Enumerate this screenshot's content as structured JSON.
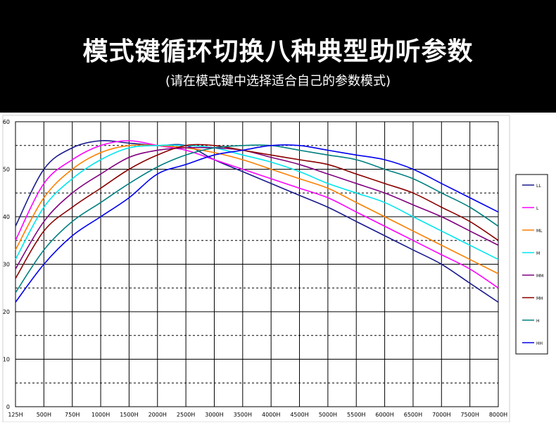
{
  "banner": {
    "title": "模式键循环切换八种典型助听参数",
    "subtitle": "(请在模式键中选择适合自己的参数模式)"
  },
  "chart_data": {
    "type": "line",
    "title": "",
    "xlabel": "",
    "ylabel": "",
    "ylim": [
      0,
      60
    ],
    "yticks": [
      0,
      10,
      20,
      30,
      40,
      50,
      60
    ],
    "grid": true,
    "legend_position": "right",
    "categories": [
      "125H",
      "500H",
      "750H",
      "1000H",
      "1500H",
      "2000H",
      "2500H",
      "3000H",
      "3500H",
      "4000H",
      "4500H",
      "5000H",
      "5500H",
      "6000H",
      "6500H",
      "7000H",
      "7500H",
      "8000H"
    ],
    "series": [
      {
        "name": "LL",
        "color": "#1a1a8c",
        "values": [
          38,
          50,
          54.5,
          56,
          55.5,
          55,
          55,
          52,
          49.5,
          47,
          44.5,
          42,
          39,
          36,
          33,
          30,
          26,
          22
        ]
      },
      {
        "name": "L",
        "color": "#ff00ff",
        "values": [
          35,
          47,
          52,
          55,
          56,
          55,
          54,
          52,
          50,
          48,
          46,
          44,
          41,
          38,
          35,
          32,
          29,
          25
        ]
      },
      {
        "name": "ML",
        "color": "#ff7f00",
        "values": [
          33,
          44,
          50,
          53.5,
          55,
          55,
          54.5,
          53.5,
          52,
          50,
          48,
          46,
          43,
          40,
          37,
          34,
          31,
          28
        ]
      },
      {
        "name": "M",
        "color": "#00e5ee",
        "values": [
          31,
          42,
          48,
          52,
          54.5,
          55,
          55,
          54.5,
          53,
          51.5,
          49.5,
          47,
          45,
          43,
          40,
          37,
          34,
          31
        ]
      },
      {
        "name": "MM",
        "color": "#800080",
        "values": [
          29,
          39,
          45,
          49,
          52.5,
          54,
          54.5,
          54.5,
          54,
          52.5,
          51,
          49,
          47,
          45,
          42.5,
          40,
          37,
          34
        ]
      },
      {
        "name": "MH",
        "color": "#8b0000",
        "values": [
          27,
          37,
          42,
          46,
          50,
          53,
          55,
          55,
          54,
          53,
          52,
          51,
          49,
          47,
          45,
          42,
          39,
          35
        ]
      },
      {
        "name": "H",
        "color": "#008080",
        "values": [
          24,
          33,
          39,
          43,
          47,
          50.5,
          53,
          54.5,
          55,
          55,
          54,
          53,
          52,
          50,
          48,
          45,
          42,
          38
        ]
      },
      {
        "name": "HH",
        "color": "#0000ee",
        "values": [
          22,
          30,
          36,
          40,
          44,
          49,
          51,
          53,
          54,
          55,
          55,
          54,
          53,
          52,
          50,
          47,
          44,
          41
        ]
      }
    ]
  }
}
